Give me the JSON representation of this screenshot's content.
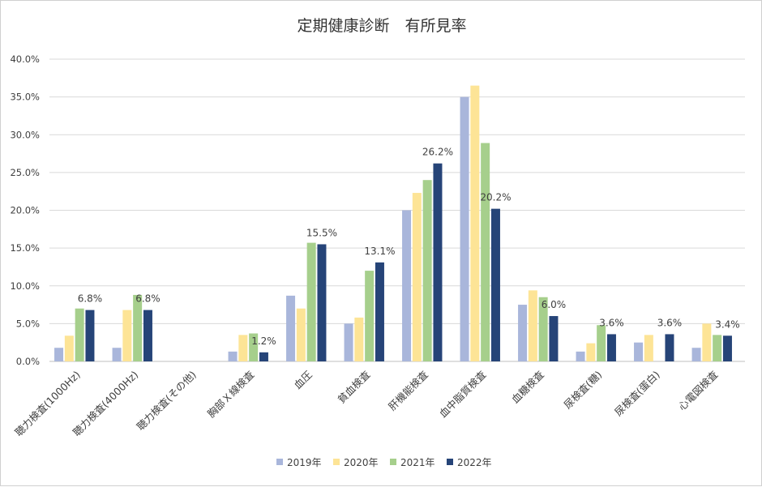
{
  "chart_data": {
    "type": "bar",
    "title": "定期健康診断　有所見率",
    "xlabel": "",
    "ylabel": "",
    "ylim": [
      0,
      40
    ],
    "yticks": [
      "0.0%",
      "5.0%",
      "10.0%",
      "15.0%",
      "20.0%",
      "25.0%",
      "30.0%",
      "35.0%",
      "40.0%"
    ],
    "grid": true,
    "legend_position": "bottom",
    "categories": [
      "聴力検査(1000Hz)",
      "聴力検査(4000Hz)",
      "聴力検査(その他)",
      "胸部Ｘ線検査",
      "血圧",
      "貧血検査",
      "肝機能検査",
      "血中脂質検査",
      "血糖検査",
      "尿検査(糖)",
      "尿検査(蛋白)",
      "心電図検査"
    ],
    "series": [
      {
        "name": "2019年",
        "color": "#a9b6db",
        "values": [
          1.8,
          1.8,
          null,
          1.3,
          8.7,
          5.0,
          20.0,
          35.0,
          7.5,
          1.3,
          2.5,
          1.8
        ]
      },
      {
        "name": "2020年",
        "color": "#fde496",
        "values": [
          3.4,
          6.8,
          null,
          3.5,
          7.0,
          5.8,
          22.3,
          36.5,
          9.4,
          2.4,
          3.5,
          5.0
        ]
      },
      {
        "name": "2021年",
        "color": "#a6cf8c",
        "values": [
          7.0,
          8.8,
          null,
          3.7,
          15.7,
          12.0,
          24.0,
          28.9,
          8.5,
          4.8,
          null,
          3.5
        ]
      },
      {
        "name": "2022年",
        "color": "#264478",
        "values": [
          6.8,
          6.8,
          null,
          1.2,
          15.5,
          13.1,
          26.2,
          20.2,
          6.0,
          3.6,
          3.6,
          3.4
        ]
      }
    ],
    "data_labels": [
      {
        "category_index": 0,
        "series_index": 3,
        "text": "6.8%"
      },
      {
        "category_index": 1,
        "series_index": 3,
        "text": "6.8%"
      },
      {
        "category_index": 3,
        "series_index": 3,
        "text": "1.2%"
      },
      {
        "category_index": 4,
        "series_index": 3,
        "text": "15.5%"
      },
      {
        "category_index": 5,
        "series_index": 3,
        "text": "13.1%"
      },
      {
        "category_index": 6,
        "series_index": 3,
        "text": "26.2%"
      },
      {
        "category_index": 7,
        "series_index": 3,
        "text": "20.2%"
      },
      {
        "category_index": 8,
        "series_index": 3,
        "text": "6.0%"
      },
      {
        "category_index": 9,
        "series_index": 3,
        "text": "3.6%"
      },
      {
        "category_index": 10,
        "series_index": 3,
        "text": "3.6%"
      },
      {
        "category_index": 11,
        "series_index": 3,
        "text": "3.4%"
      }
    ]
  }
}
